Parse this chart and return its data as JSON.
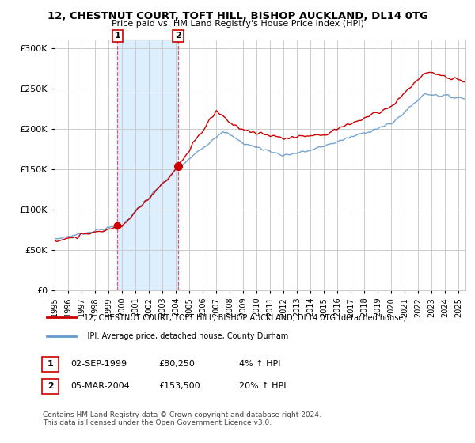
{
  "title": "12, CHESTNUT COURT, TOFT HILL, BISHOP AUCKLAND, DL14 0TG",
  "subtitle": "Price paid vs. HM Land Registry's House Price Index (HPI)",
  "xlim_start": 1995.0,
  "xlim_end": 2025.5,
  "ylim": [
    0,
    310000
  ],
  "yticks": [
    0,
    50000,
    100000,
    150000,
    200000,
    250000,
    300000
  ],
  "sale1_date": 1999.67,
  "sale1_price": 80250,
  "sale2_date": 2004.17,
  "sale2_price": 153500,
  "shaded_start": 1999.67,
  "shaded_end": 2004.17,
  "sale1_label": "1",
  "sale2_label": "2",
  "legend_line1": "12, CHESTNUT COURT, TOFT HILL, BISHOP AUCKLAND, DL14 0TG (detached house)",
  "legend_line2": "HPI: Average price, detached house, County Durham",
  "ann1_date": "02-SEP-1999",
  "ann1_price": "£80,250",
  "ann1_hpi": "4% ↑ HPI",
  "ann2_date": "05-MAR-2004",
  "ann2_price": "£153,500",
  "ann2_hpi": "20% ↑ HPI",
  "footer": "Contains HM Land Registry data © Crown copyright and database right 2024.\nThis data is licensed under the Open Government Licence v3.0.",
  "red_color": "#cc0000",
  "blue_color": "#6699cc",
  "shade_color": "#ddeeff",
  "bg_color": "#ffffff",
  "grid_color": "#cccccc"
}
